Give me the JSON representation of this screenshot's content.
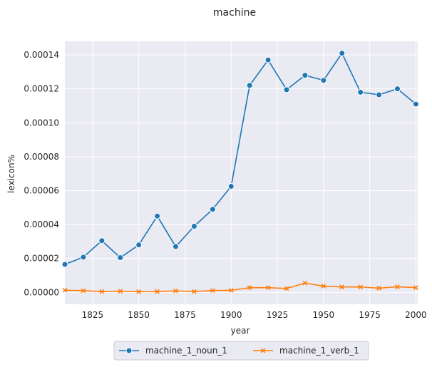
{
  "chart_data": {
    "type": "line",
    "title": "machine",
    "xlabel": "year",
    "ylabel": "lexicon%",
    "xlim": [
      1810,
      2001
    ],
    "ylim": [
      -7e-06,
      0.000148
    ],
    "xticks": [
      1825,
      1850,
      1875,
      1900,
      1925,
      1950,
      1975,
      2000
    ],
    "xtick_labels": [
      "1825",
      "1850",
      "1875",
      "1900",
      "1925",
      "1950",
      "1975",
      "2000"
    ],
    "yticks": [
      0,
      2e-05,
      4e-05,
      6e-05,
      8e-05,
      0.0001,
      0.00012,
      0.00014
    ],
    "ytick_labels": [
      "0.00000",
      "0.00002",
      "0.00004",
      "0.00006",
      "0.00008",
      "0.00010",
      "0.00012",
      "0.00014"
    ],
    "grid": true,
    "legend_position": "bottom-center",
    "x": [
      1810,
      1820,
      1830,
      1840,
      1850,
      1860,
      1870,
      1880,
      1890,
      1900,
      1910,
      1920,
      1930,
      1940,
      1950,
      1960,
      1970,
      1980,
      1990,
      2000
    ],
    "series": [
      {
        "name": "machine_1_noun_1",
        "color": "#1f77b4",
        "marker": "circle",
        "values": [
          1.65e-05,
          2.08e-05,
          3.05e-05,
          2.05e-05,
          2.8e-05,
          4.5e-05,
          2.7e-05,
          3.9e-05,
          4.9e-05,
          6.25e-05,
          0.000122,
          0.000137,
          0.0001195,
          0.000128,
          0.000125,
          0.000141,
          0.000118,
          0.0001165,
          0.00012,
          0.000111
        ]
      },
      {
        "name": "machine_1_verb_1",
        "color": "#ff7f0e",
        "marker": "x",
        "values": [
          1.3e-06,
          1e-06,
          5e-07,
          7e-07,
          4e-07,
          5e-07,
          9e-07,
          5e-07,
          1.1e-06,
          1.2e-06,
          2.8e-06,
          2.8e-06,
          2.3e-06,
          5.5e-06,
          3.7e-06,
          3.2e-06,
          3.2e-06,
          2.5e-06,
          3.3e-06,
          2.8e-06
        ]
      }
    ]
  }
}
